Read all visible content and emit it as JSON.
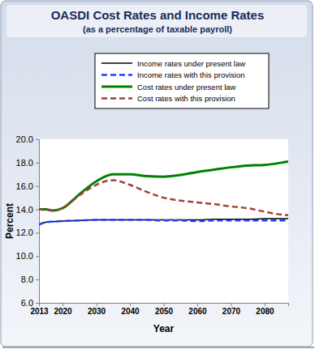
{
  "chart_data": {
    "type": "line",
    "title": "OASDI Cost Rates and Income Rates",
    "subtitle": "(as a percentage of taxable payroll)",
    "x_label": "Year",
    "y_label": "Percent",
    "x": [
      2013,
      2015,
      2017,
      2020,
      2025,
      2030,
      2035,
      2040,
      2045,
      2050,
      2055,
      2060,
      2065,
      2070,
      2075,
      2080,
      2085,
      2087
    ],
    "series": [
      {
        "name": "Income rates under present law",
        "color": "#000000",
        "line_style": "solid",
        "values": [
          12.7,
          12.9,
          12.95,
          13.0,
          13.05,
          13.1,
          13.1,
          13.1,
          13.1,
          13.1,
          13.1,
          13.1,
          13.15,
          13.15,
          13.15,
          13.2,
          13.2,
          13.2
        ]
      },
      {
        "name": "Income rates with this provision",
        "color": "#1f3fff",
        "line_style": "dashed",
        "values": [
          12.7,
          12.9,
          12.95,
          13.0,
          13.05,
          13.1,
          13.1,
          13.1,
          13.1,
          13.05,
          13.05,
          13.0,
          13.05,
          13.05,
          13.05,
          13.05,
          13.05,
          13.05
        ]
      },
      {
        "name": "Cost rates under present law",
        "color": "#008000",
        "line_style": "solid",
        "values": [
          14.0,
          14.0,
          13.9,
          14.1,
          15.3,
          16.4,
          17.0,
          17.0,
          16.85,
          16.8,
          16.95,
          17.2,
          17.4,
          17.6,
          17.75,
          17.8,
          18.0,
          18.1
        ]
      },
      {
        "name": "Cost rates with this provision",
        "color": "#a0403c",
        "line_style": "dashed",
        "values": [
          14.0,
          13.95,
          13.9,
          14.1,
          15.2,
          16.1,
          16.5,
          16.1,
          15.5,
          15.0,
          14.75,
          14.6,
          14.45,
          14.25,
          14.1,
          13.8,
          13.55,
          13.5
        ]
      }
    ],
    "xlim": [
      2013,
      2087
    ],
    "xticks": [
      2013,
      2020,
      2030,
      2040,
      2050,
      2060,
      2070,
      2080
    ],
    "ylim": [
      6,
      20
    ],
    "yticks": [
      {
        "value": 6,
        "label": "6.0"
      },
      {
        "value": 8,
        "label": "8.0"
      },
      {
        "value": 10,
        "label": "10.0"
      },
      {
        "value": 12,
        "label": "12.0"
      },
      {
        "value": 14,
        "label": "14.0"
      },
      {
        "value": 16,
        "label": "16.0"
      },
      {
        "value": 18,
        "label": "18.0"
      },
      {
        "value": 20,
        "label": "20.0"
      }
    ],
    "grid": false,
    "legend": "top"
  }
}
